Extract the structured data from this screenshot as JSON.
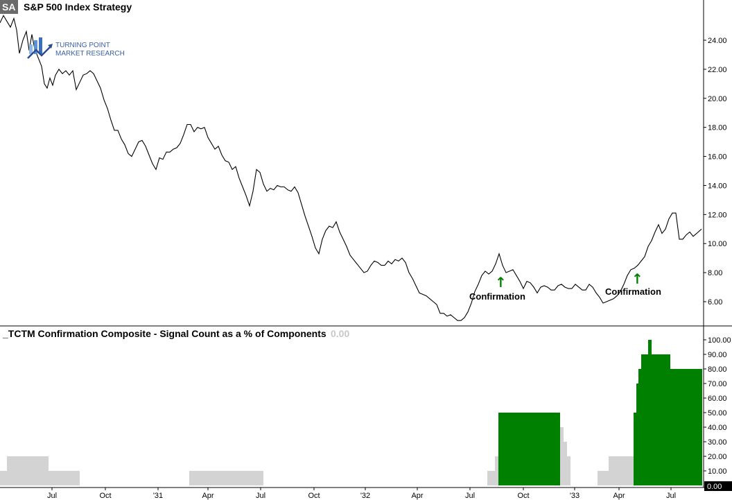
{
  "chart_data": [
    {
      "type": "line",
      "title": "S&P 500 Index  Strategy",
      "symbol": "SA",
      "ylim": [
        4.4,
        26.0
      ],
      "yticks": [
        6.0,
        8.0,
        10.0,
        12.0,
        14.0,
        16.0,
        18.0,
        20.0,
        22.0,
        24.0
      ],
      "ytick_labels": [
        "6.00",
        "8.00",
        "10.00",
        "12.00",
        "14.00",
        "16.00",
        "18.00",
        "20.00",
        "22.00",
        "24.00"
      ],
      "color": "#000000",
      "x": [
        0,
        5,
        10,
        15,
        20,
        24,
        28,
        33,
        38,
        42,
        46,
        50,
        55,
        60,
        64,
        68,
        72,
        76,
        80,
        85,
        90,
        95,
        100,
        105,
        110,
        115,
        120,
        125,
        130,
        135,
        140,
        145,
        150,
        155,
        160,
        165,
        170,
        175,
        180,
        185,
        190,
        195,
        200,
        205,
        210,
        215,
        220,
        225,
        230,
        235,
        240,
        245,
        250,
        255,
        260,
        265,
        270,
        275,
        280,
        285,
        290,
        295,
        300,
        305,
        310,
        315,
        320,
        325,
        330,
        335,
        340,
        345,
        350,
        355,
        360,
        365,
        370,
        375,
        380,
        385,
        390,
        395,
        400,
        405,
        410,
        415,
        420,
        425,
        430,
        435,
        440,
        445,
        450,
        455,
        460,
        465,
        470,
        475,
        480,
        485,
        490,
        495,
        500,
        505,
        510,
        515,
        520,
        525,
        530,
        535,
        540,
        545,
        550,
        555,
        560,
        565,
        570,
        575,
        580,
        585,
        590,
        595,
        600,
        605,
        610,
        615,
        620,
        625,
        630,
        635,
        640,
        645,
        650,
        655,
        660,
        665,
        670,
        675,
        680,
        685,
        690,
        695,
        700,
        705,
        710,
        715,
        720,
        725,
        730,
        735,
        740,
        745,
        750,
        755,
        760,
        765,
        770,
        775,
        780,
        785,
        790,
        795,
        800,
        805,
        810,
        815,
        820,
        825,
        830,
        835,
        840,
        845,
        850,
        855,
        860,
        865,
        870,
        875,
        880,
        885,
        890,
        895,
        900,
        905,
        910,
        915,
        920,
        925,
        930,
        935,
        940,
        945,
        950,
        955,
        960,
        965,
        970,
        975,
        980,
        985,
        990,
        995,
        1000,
        1005,
        1012
      ],
      "values": [
        25.2,
        25.7,
        25.3,
        24.9,
        25.5,
        24.7,
        23.1,
        24.0,
        24.6,
        23.3,
        24.4,
        23.4,
        22.8,
        22.2,
        21.0,
        20.7,
        21.4,
        20.9,
        21.6,
        22.0,
        21.7,
        21.9,
        21.6,
        21.9,
        20.6,
        21.1,
        21.6,
        21.7,
        21.9,
        21.7,
        21.2,
        20.7,
        19.9,
        19.3,
        18.5,
        17.8,
        17.8,
        17.2,
        16.8,
        16.2,
        16.0,
        16.5,
        17.0,
        17.1,
        16.7,
        16.1,
        15.5,
        15.1,
        15.9,
        15.8,
        16.3,
        16.3,
        16.5,
        16.6,
        16.9,
        17.5,
        18.2,
        18.2,
        17.7,
        18.0,
        17.9,
        18.0,
        17.3,
        16.9,
        16.5,
        16.7,
        16.1,
        15.7,
        15.6,
        15.1,
        15.3,
        14.5,
        13.9,
        13.3,
        12.6,
        13.6,
        15.1,
        14.9,
        14.1,
        13.6,
        13.8,
        13.7,
        14.0,
        13.9,
        13.9,
        13.7,
        13.6,
        13.9,
        13.5,
        12.7,
        11.9,
        11.2,
        10.5,
        9.7,
        9.3,
        10.3,
        10.9,
        11.2,
        11.1,
        11.5,
        10.8,
        10.3,
        9.8,
        9.2,
        8.9,
        8.6,
        8.3,
        8.0,
        8.1,
        8.5,
        8.8,
        8.7,
        8.5,
        8.5,
        8.8,
        8.6,
        8.9,
        8.8,
        9.0,
        8.7,
        8.0,
        7.6,
        7.1,
        6.6,
        6.5,
        6.4,
        6.2,
        6.0,
        5.8,
        5.2,
        5.2,
        5.0,
        5.1,
        4.9,
        4.7,
        4.7,
        4.9,
        5.3,
        5.9,
        6.7,
        7.2,
        7.8,
        8.1,
        7.9,
        8.1,
        8.6,
        9.3,
        8.5,
        8.0,
        8.1,
        8.2,
        7.8,
        7.4,
        6.9,
        7.4,
        7.3,
        7.0,
        6.6,
        7.0,
        7.1,
        7.0,
        6.8,
        6.8,
        7.1,
        7.2,
        7.0,
        6.9,
        6.9,
        7.2,
        7.0,
        6.8,
        6.8,
        7.2,
        7.0,
        6.6,
        6.3,
        5.9,
        6.0,
        6.1,
        6.2,
        6.4,
        6.7,
        7.2,
        7.8,
        8.2,
        8.3,
        8.5,
        8.8,
        9.1,
        9.8,
        10.2,
        10.8,
        11.3,
        10.7,
        11.0,
        11.7,
        12.1,
        12.1,
        10.3,
        10.3,
        10.6,
        10.8,
        10.5,
        10.7,
        11.0
      ]
    },
    {
      "type": "bar",
      "title": "_TCTM Confirmation Composite - Signal Count as a % of Components",
      "last_value_label": "0.00",
      "ylim": [
        0,
        100
      ],
      "yticks": [
        10,
        20,
        30,
        40,
        50,
        60,
        70,
        80,
        90,
        100
      ],
      "ytick_labels": [
        "10.00",
        "20.00",
        "30.00",
        "40.00",
        "50.00",
        "60.00",
        "70.00",
        "80.00",
        "90.00",
        "100.00"
      ],
      "current_value_label": "0.00",
      "colors": {
        "gray": "#d3d3d3",
        "green": "#008000"
      },
      "x": [
        0,
        10,
        70,
        115,
        273,
        380,
        703,
        714,
        719,
        808,
        813,
        818,
        823,
        862,
        878,
        914,
        918,
        921,
        925,
        935,
        940,
        967,
        985,
        1013
      ],
      "values": [
        10,
        20,
        10,
        0,
        10,
        0,
        10,
        20,
        50,
        40,
        30,
        20,
        0,
        10,
        20,
        50,
        70,
        80,
        90,
        100,
        90,
        80,
        80,
        0
      ],
      "signal_on": [
        false,
        false,
        false,
        false,
        false,
        false,
        false,
        false,
        true,
        false,
        false,
        false,
        false,
        false,
        false,
        true,
        true,
        true,
        true,
        true,
        true,
        true,
        true,
        false
      ]
    }
  ],
  "x_axis": {
    "tick_labels": [
      "Jul",
      "Oct",
      "'31",
      "Apr",
      "Jul",
      "Oct",
      "'32",
      "Apr",
      "Jul",
      "Oct",
      "'33",
      "Apr",
      "Jul"
    ]
  },
  "annotations": [
    {
      "label": "Confirmation",
      "arrow": "↑",
      "arrow_color": "#008000"
    },
    {
      "label": "Confirmation",
      "arrow": "↑",
      "arrow_color": "#008000"
    }
  ],
  "logo": {
    "line1": "TURNING POINT",
    "line2": "MARKET RESEARCH"
  }
}
